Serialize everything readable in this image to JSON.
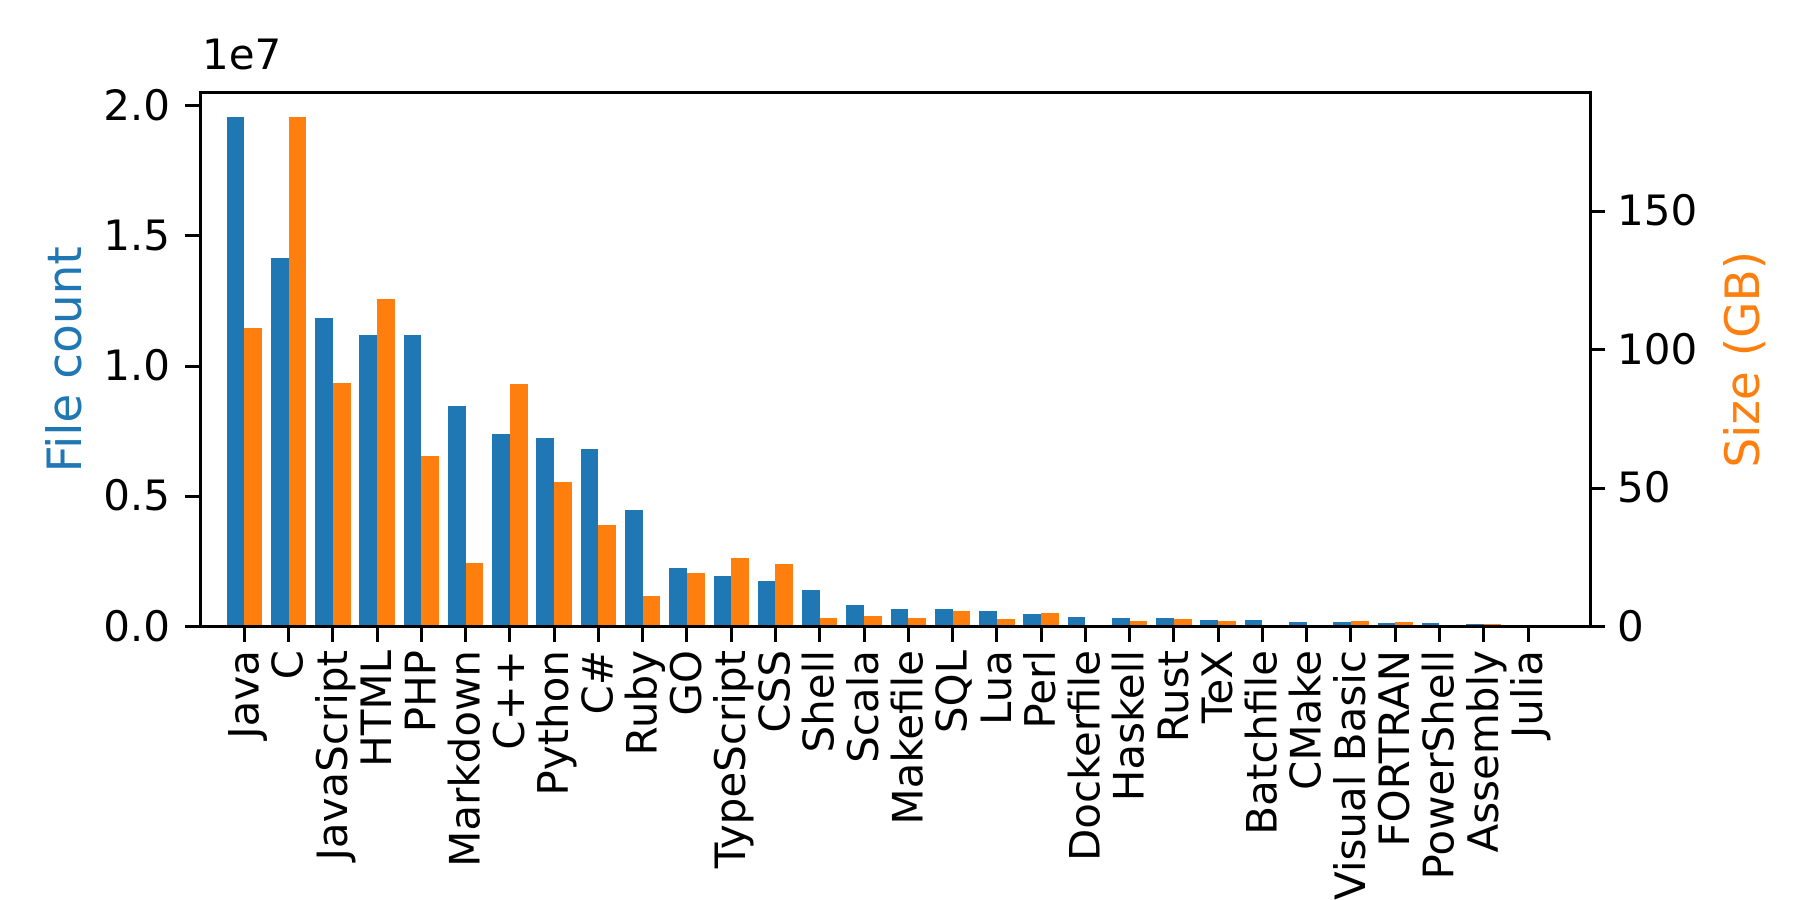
{
  "figure": {
    "background": "#ffffff",
    "offset_text": "1e7",
    "axes": {
      "left": {
        "label": "File count",
        "color": "#1f77b4",
        "tick_labels": [
          "0.0",
          "0.5",
          "1.0",
          "1.5",
          "2.0"
        ],
        "tick_values": [
          0,
          5000000,
          10000000,
          15000000,
          20000000
        ]
      },
      "right": {
        "label": "Size (GB)",
        "color": "#ff7f0e",
        "tick_labels": [
          "0",
          "50",
          "100",
          "150"
        ],
        "tick_values": [
          0,
          50,
          100,
          150
        ]
      }
    }
  },
  "chart_data": {
    "type": "bar",
    "title": "",
    "xlabel": "",
    "categories": [
      "Java",
      "C",
      "JavaScript",
      "HTML",
      "PHP",
      "Markdown",
      "C++",
      "Python",
      "C#",
      "Ruby",
      "GO",
      "TypeScript",
      "CSS",
      "Shell",
      "Scala",
      "Makefile",
      "SQL",
      "Lua",
      "Perl",
      "Dockerfile",
      "Haskell",
      "Rust",
      "TeX",
      "Batchfile",
      "CMake",
      "Visual Basic",
      "FORTRAN",
      "PowerShell",
      "Assembly",
      "Julia"
    ],
    "series": [
      {
        "name": "File count",
        "axis": "left",
        "color": "#1f77b4",
        "values": [
          19548190,
          14143113,
          11839883,
          11178557,
          11177610,
          8464626,
          7380520,
          7226626,
          6811652,
          4473331,
          2265436,
          1940406,
          1734406,
          1385648,
          835755,
          679430,
          656671,
          578554,
          497949,
          366505,
          340623,
          322431,
          251015,
          236945,
          175282,
          155652,
          142038,
          136846,
          82905,
          58317
        ]
      },
      {
        "name": "Size (GB)",
        "axis": "right",
        "color": "#ff7f0e",
        "values": [
          107.7,
          183.83,
          87.82,
          118.12,
          61.41,
          23.09,
          87.73,
          52.03,
          36.83,
          10.95,
          19.28,
          24.59,
          22.61,
          3.01,
          3.87,
          2.92,
          5.67,
          2.81,
          4.7,
          0.71,
          1.85,
          2.68,
          2.15,
          0.7,
          0.54,
          1.91,
          1.62,
          0.69,
          0.78,
          0.29
        ]
      }
    ],
    "ylim_left": [
      0,
      20525600
    ],
    "ylim_right": [
      0,
      193.02
    ],
    "xlim": [
      -1,
      30.4
    ],
    "bar_width": 0.4,
    "grid": false,
    "legend": "none"
  }
}
